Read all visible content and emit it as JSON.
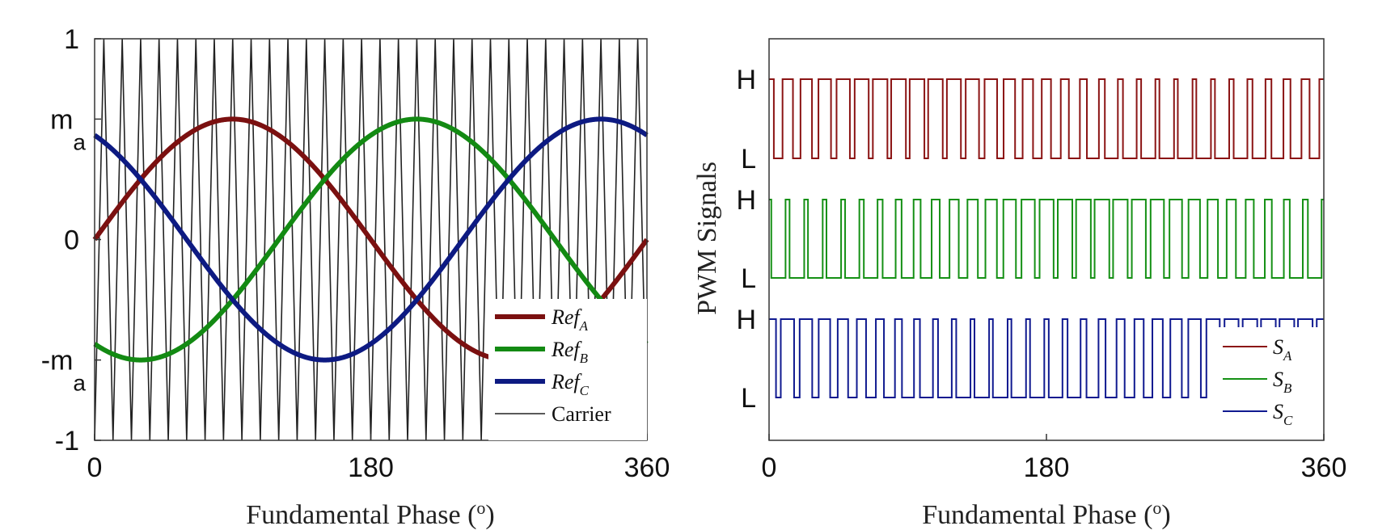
{
  "chart_data": [
    {
      "type": "line",
      "xlabel_main": "Fundamental Phase (",
      "xlabel_sup": "o",
      "xlabel_close": ")",
      "xlim": [
        0,
        360
      ],
      "ylim": [
        -1,
        1
      ],
      "x_ticks": [
        {
          "value": 0,
          "label": "0"
        },
        {
          "value": 180,
          "label": "180"
        },
        {
          "value": 360,
          "label": "360"
        }
      ],
      "y_ticks": [
        {
          "value": 1,
          "label": "1",
          "sub": ""
        },
        {
          "value": 0.6,
          "label": "m",
          "sub": "a"
        },
        {
          "value": 0,
          "label": "0",
          "sub": ""
        },
        {
          "value": -0.6,
          "label": "-m",
          "sub": "a"
        },
        {
          "value": -1,
          "label": "-1",
          "sub": ""
        }
      ],
      "modulation_index": 0.6,
      "carrier_periods": 30,
      "series": [
        {
          "name": "Ref",
          "sub": "A",
          "kind": "sine",
          "amplitude": 0.6,
          "phase_deg": 0,
          "color": "#7b1010"
        },
        {
          "name": "Ref",
          "sub": "B",
          "kind": "sine",
          "amplitude": 0.6,
          "phase_deg": -120,
          "color": "#138a13"
        },
        {
          "name": "Ref",
          "sub": "C",
          "kind": "sine",
          "amplitude": 0.6,
          "phase_deg": 120,
          "color": "#0d1a82"
        },
        {
          "name": "Carrier",
          "sub": "",
          "kind": "triangle",
          "amplitude": 1,
          "color": "#222222"
        }
      ],
      "legend": "bottom-right"
    },
    {
      "type": "line",
      "ylabel": "PWM Signals",
      "xlabel_main": "Fundamental Phase (",
      "xlabel_sup": "o",
      "xlabel_close": ")",
      "xlim": [
        0,
        360
      ],
      "x_ticks": [
        {
          "value": 0,
          "label": "0"
        },
        {
          "value": 180,
          "label": "180"
        },
        {
          "value": 360,
          "label": "360"
        }
      ],
      "level_high": "H",
      "level_low": "L",
      "series": [
        {
          "name": "S",
          "sub": "A",
          "phase_deg": 0,
          "color": "#8b1414"
        },
        {
          "name": "S",
          "sub": "B",
          "phase_deg": -120,
          "color": "#159015"
        },
        {
          "name": "S",
          "sub": "C",
          "phase_deg": 120,
          "color": "#101a90"
        }
      ],
      "legend": "bottom-right"
    }
  ]
}
